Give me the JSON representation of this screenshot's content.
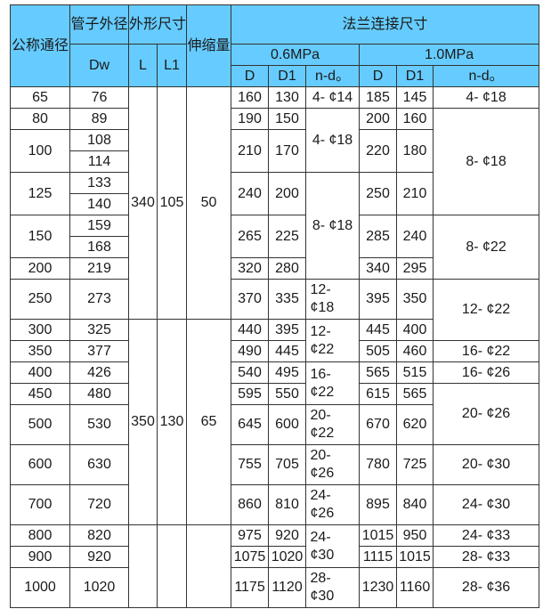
{
  "colors": {
    "header_bg": "#66ccff",
    "border": "#333333"
  },
  "header": {
    "dn": "公称通径",
    "pipe_od": "管子外径",
    "dw": "Dw",
    "outline": "外形尺寸",
    "L": "L",
    "L1": "L1",
    "expansion": "伸缩量",
    "flange": "法兰连接尺寸",
    "p06": "0.6MPa",
    "p10": "1.0MPa",
    "D": "D",
    "D1": "D1",
    "nd": "n-d。"
  },
  "rows": [
    [
      "65",
      "76",
      [
        "340",
        10
      ],
      [
        "105",
        10
      ],
      [
        "50",
        10
      ],
      "160",
      "130",
      "4- ¢14",
      "185",
      "145",
      "4- ¢18"
    ],
    [
      "80",
      "89",
      "190",
      "150",
      [
        "4- ¢18",
        3
      ],
      "200",
      "160",
      [
        "8- ¢18",
        5
      ]
    ],
    [
      [
        "100",
        2
      ],
      "108",
      [
        "210",
        2
      ],
      [
        "170",
        2
      ],
      [
        "220",
        2
      ],
      [
        "180",
        2
      ]
    ],
    [
      "114"
    ],
    [
      [
        "125",
        2
      ],
      "133",
      [
        "240",
        2
      ],
      [
        "200",
        2
      ],
      [
        "8- ¢18",
        5
      ],
      [
        "250",
        2
      ],
      [
        "210",
        2
      ]
    ],
    [
      "140"
    ],
    [
      [
        "150",
        2
      ],
      "159",
      [
        "265",
        2
      ],
      [
        "225",
        2
      ],
      [
        "285",
        2
      ],
      [
        "240",
        2
      ],
      [
        "8- ¢22",
        3
      ]
    ],
    [
      "168"
    ],
    [
      "200",
      "219",
      "320",
      "280",
      "340",
      "295"
    ],
    [
      "250",
      "273",
      "370",
      "335",
      "12- ¢18",
      "395",
      "350",
      [
        "12- ¢22",
        2
      ]
    ],
    [
      "300",
      "325",
      [
        "350",
        7
      ],
      [
        "130",
        7
      ],
      [
        "65",
        7
      ],
      "440",
      "395",
      [
        "12- ¢22",
        2
      ],
      "445",
      "400"
    ],
    [
      "350",
      "377",
      "490",
      "445",
      "505",
      "460",
      "16- ¢22"
    ],
    [
      "400",
      "426",
      "540",
      "495",
      [
        "16- ¢22",
        2
      ],
      "565",
      "515",
      "16- ¢26"
    ],
    [
      "450",
      "480",
      "595",
      "550",
      "615",
      "565",
      [
        "20- ¢26",
        2
      ]
    ],
    [
      "500",
      "530",
      "645",
      "600",
      "20- ¢22",
      "670",
      "620"
    ],
    [
      "600",
      "630",
      "755",
      "705",
      "20- ¢26",
      "780",
      "725",
      "20- ¢30"
    ],
    [
      "700",
      "720",
      "860",
      "810",
      "24- ¢26",
      "895",
      "840",
      "24- ¢30"
    ],
    [
      "800",
      "820",
      [
        "",
        3
      ],
      [
        "",
        3
      ],
      [
        "",
        3
      ],
      "975",
      "920",
      [
        "24- ¢30",
        2
      ],
      "1015",
      "950",
      "24- ¢33"
    ],
    [
      "900",
      "920",
      "1075",
      "1020",
      "1115",
      "1015",
      "28- ¢33"
    ],
    [
      "1000",
      "1020",
      "1175",
      "1120",
      "28- ¢30",
      "1230",
      "1160",
      "28- ¢36"
    ]
  ]
}
